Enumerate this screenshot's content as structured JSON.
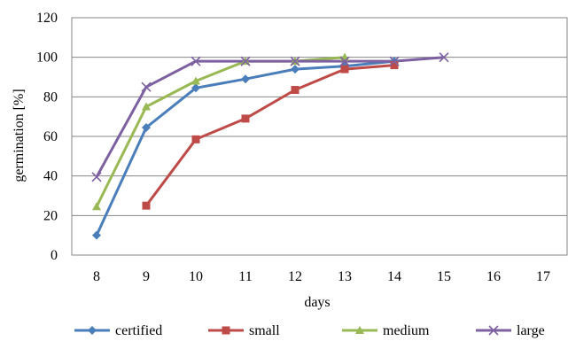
{
  "chart_data": {
    "type": "line",
    "title": "",
    "xlabel": "days",
    "ylabel": "germination [%]",
    "categories": [
      "8",
      "9",
      "10",
      "11",
      "12",
      "13",
      "14",
      "15",
      "16",
      "17"
    ],
    "ylim": [
      0,
      120
    ],
    "yticks": [
      0,
      20,
      40,
      60,
      80,
      100,
      120
    ],
    "grid": "horizontal",
    "legend_position": "bottom",
    "series": [
      {
        "name": "certified",
        "color": "#4A7EBB",
        "marker": "diamond",
        "x": [
          "8",
          "9",
          "10",
          "11",
          "12",
          "13",
          "14"
        ],
        "values": [
          10,
          64.5,
          84.5,
          89,
          94,
          95.5,
          98
        ]
      },
      {
        "name": "small",
        "color": "#BE4B48",
        "marker": "square",
        "x": [
          "9",
          "10",
          "11",
          "12",
          "13",
          "14"
        ],
        "values": [
          25,
          58.5,
          69,
          83.5,
          94,
          96
        ]
      },
      {
        "name": "medium",
        "color": "#98B954",
        "marker": "triangle",
        "x": [
          "8",
          "9",
          "10",
          "11",
          "12",
          "13"
        ],
        "values": [
          24.5,
          75,
          88,
          98,
          98,
          100
        ]
      },
      {
        "name": "large",
        "color": "#7D60A0",
        "marker": "x",
        "x": [
          "8",
          "9",
          "10",
          "11",
          "12",
          "13",
          "14",
          "15"
        ],
        "values": [
          39.5,
          85,
          98,
          98,
          98,
          98,
          98,
          100
        ]
      }
    ]
  }
}
